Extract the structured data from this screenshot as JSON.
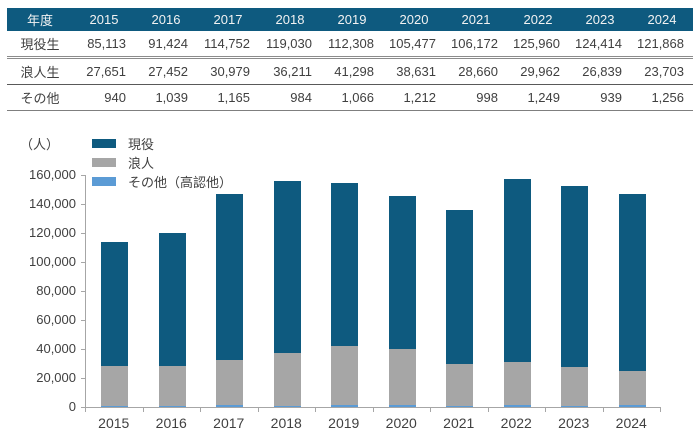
{
  "colors": {
    "primary_blue": "#0E5A7F",
    "gray": "#A6A6A6",
    "light_blue": "#5B9BD5",
    "axis": "#A6A6A6",
    "header_text": "#F2F2F2",
    "body_text": "#404040"
  },
  "table": {
    "header_row": [
      "年度",
      "2015",
      "2016",
      "2017",
      "2018",
      "2019",
      "2020",
      "2021",
      "2022",
      "2023",
      "2024"
    ],
    "rows": [
      {
        "label": "現役生",
        "values": [
          "85,113",
          "91,424",
          "114,752",
          "119,030",
          "112,308",
          "105,477",
          "106,172",
          "125,960",
          "124,414",
          "121,868"
        ]
      },
      {
        "label": "浪人生",
        "values": [
          "27,651",
          "27,452",
          "30,979",
          "36,211",
          "41,298",
          "38,631",
          "28,660",
          "29,962",
          "26,839",
          "23,703"
        ]
      },
      {
        "label": "その他",
        "values": [
          "940",
          "1,039",
          "1,165",
          "984",
          "1,066",
          "1,212",
          "998",
          "1,249",
          "939",
          "1,256"
        ]
      }
    ]
  },
  "chart_data": {
    "type": "bar",
    "stacked": true,
    "unit_label": "（人）",
    "categories": [
      "2015",
      "2016",
      "2017",
      "2018",
      "2019",
      "2020",
      "2021",
      "2022",
      "2023",
      "2024"
    ],
    "series": [
      {
        "name": "現役",
        "color": "#0E5A7F",
        "values": [
          85113,
          91424,
          114752,
          119030,
          112308,
          105477,
          106172,
          125960,
          124414,
          121868
        ]
      },
      {
        "name": "浪人",
        "color": "#A6A6A6",
        "values": [
          27651,
          27452,
          30979,
          36211,
          41298,
          38631,
          28660,
          29962,
          26839,
          23703
        ]
      },
      {
        "name": "その他（高認他）",
        "color": "#5B9BD5",
        "values": [
          940,
          1039,
          1165,
          984,
          1066,
          1212,
          998,
          1249,
          939,
          1256
        ]
      }
    ],
    "stack_order_bottom_to_top": [
      2,
      1,
      0
    ],
    "ylim": [
      0,
      160000
    ],
    "ytick_step": 20000,
    "ytick_labels": [
      "0",
      "20,000",
      "40,000",
      "60,000",
      "80,000",
      "100,000",
      "120,000",
      "140,000",
      "160,000"
    ],
    "xlabel": "",
    "ylabel": "（人）",
    "grid": false,
    "legend_position": "top-left-inside"
  }
}
